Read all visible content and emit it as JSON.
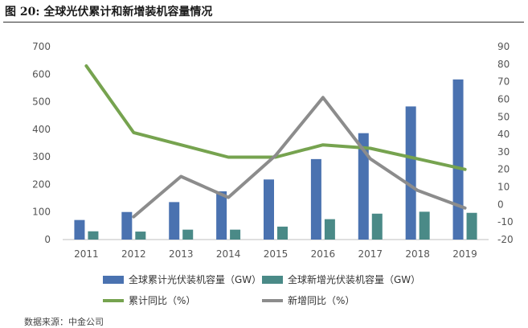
{
  "figure": {
    "title": "图  20:  全球光伏累计和新增装机容量情况",
    "source": "数据来源：中金公司"
  },
  "chart_data": {
    "type": "bar",
    "categories": [
      "2011",
      "2012",
      "2013",
      "2014",
      "2015",
      "2016",
      "2017",
      "2018",
      "2019"
    ],
    "series": [
      {
        "name": "全球累计光伏装机容量（GW）",
        "type": "bar",
        "axis": "left",
        "color": "#4a72b0",
        "values": [
          71,
          100,
          136,
          175,
          218,
          292,
          386,
          483,
          581
        ]
      },
      {
        "name": "全球新增光伏装机容量（GW）",
        "type": "bar",
        "axis": "left",
        "color": "#4a8a87",
        "values": [
          30,
          29,
          36,
          36,
          47,
          74,
          94,
          101,
          97
        ]
      },
      {
        "name": "累计同比（%）",
        "type": "line",
        "axis": "right",
        "color": "#76a34f",
        "values": [
          79,
          41,
          34,
          27,
          27,
          34,
          32,
          26,
          20
        ]
      },
      {
        "name": "新增同比（%）",
        "type": "line",
        "axis": "right",
        "color": "#8c8c8c",
        "values": [
          null,
          -7,
          16,
          4,
          28,
          61,
          26,
          8,
          -2
        ]
      }
    ],
    "y_left": {
      "min": 0,
      "max": 700,
      "ticks": [
        0,
        100,
        200,
        300,
        400,
        500,
        600,
        700
      ]
    },
    "y_right": {
      "min": -20,
      "max": 90,
      "ticks": [
        -20,
        -10,
        0,
        10,
        20,
        30,
        40,
        50,
        60,
        70,
        80,
        90
      ]
    },
    "grid": false,
    "legend_position": "bottom"
  }
}
